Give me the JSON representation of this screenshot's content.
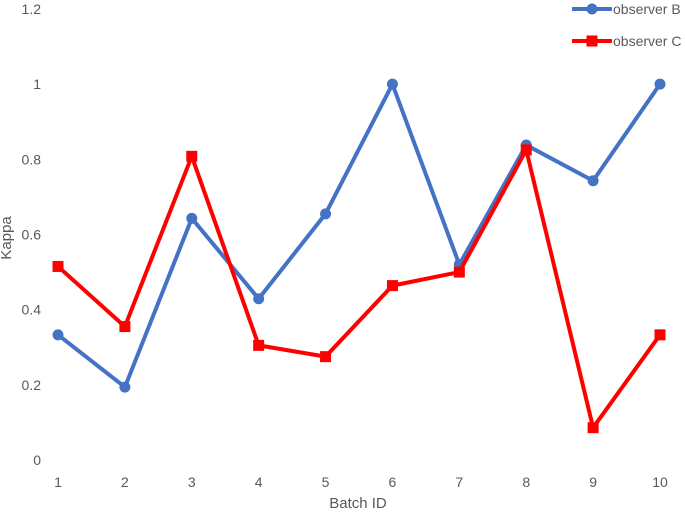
{
  "chart_data": {
    "type": "line",
    "title": "",
    "xlabel": "Batch ID",
    "ylabel": "Kappa",
    "x": [
      1,
      2,
      3,
      4,
      5,
      6,
      7,
      8,
      9,
      10
    ],
    "x_tick_labels": [
      "1",
      "2",
      "3",
      "4",
      "5",
      "6",
      "7",
      "8",
      "9",
      "10"
    ],
    "y_tick_labels": [
      "0",
      "0.2",
      "0.4",
      "0.6",
      "0.8",
      "1",
      "1.2"
    ],
    "ylim": [
      0,
      1.2
    ],
    "grid": false,
    "legend_position": "top-right",
    "series": [
      {
        "name": "observer B",
        "color": "#4472C4",
        "marker": "circle",
        "values": [
          0.333,
          0.194,
          0.643,
          0.429,
          0.655,
          1.0,
          0.52,
          0.838,
          0.743,
          1.0
        ]
      },
      {
        "name": "observer C",
        "color": "#FF0000",
        "marker": "square",
        "values": [
          0.515,
          0.355,
          0.808,
          0.305,
          0.275,
          0.464,
          0.5,
          0.825,
          0.086,
          0.333
        ]
      }
    ]
  }
}
